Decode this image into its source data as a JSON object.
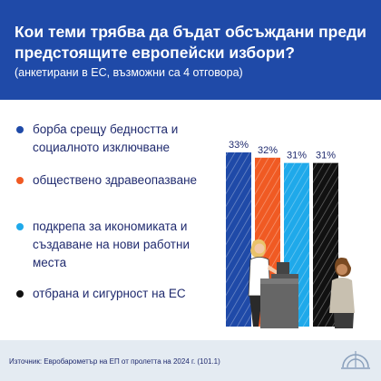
{
  "header": {
    "title": "Кои теми трябва да бъдат обсъждани преди предстоящите европейски избори?",
    "subtitle": "(анкетирани в ЕС, възможни са 4 отговора)"
  },
  "legend": [
    {
      "label": "борба срещу бедността и социалното изключване",
      "color": "#1f4aa8"
    },
    {
      "label": "обществено здравеопазване",
      "color": "#f05a23"
    },
    {
      "label": "подкрепа за икономиката и създаване на нови работни места",
      "color": "#1fa9ea"
    },
    {
      "label": "отбрана и сигурност на ЕС",
      "color": "#111111"
    }
  ],
  "chart_data": {
    "type": "bar",
    "categories": [
      "борба срещу бедността и социалното изключване",
      "обществено здравеопазване",
      "подкрепа за икономиката и създаване на нови работни места",
      "отбрана и сигурност на ЕС"
    ],
    "values": [
      33,
      32,
      31,
      31
    ],
    "value_labels": [
      "33%",
      "32%",
      "31%",
      "31%"
    ],
    "colors": [
      "#1f4aa8",
      "#f05a23",
      "#1fa9ea",
      "#111111"
    ],
    "unit": "%",
    "ylim": [
      0,
      33
    ],
    "grid": false,
    "axes_visible": false
  },
  "footer": {
    "source": "Източник: Евробарометър на ЕП от пролетта на 2024 г. (101.1)"
  }
}
